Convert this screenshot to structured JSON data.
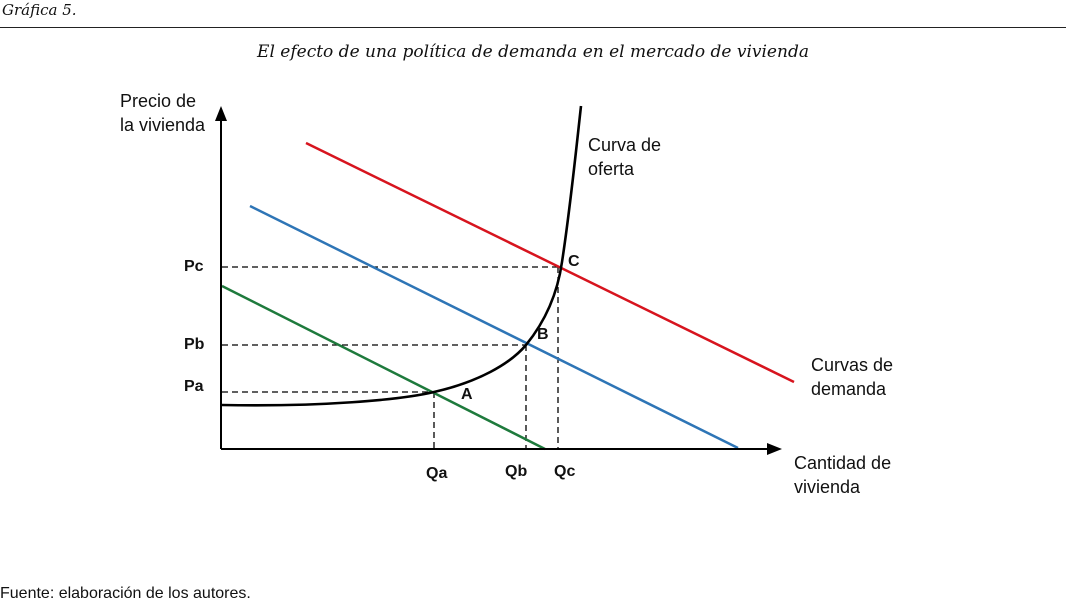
{
  "header": {
    "figure_label": "Gráfica 5.",
    "title": "El efecto de una política de demanda en el mercado de vivienda"
  },
  "diagram": {
    "y_axis_title": [
      "Precio de",
      "la vivienda"
    ],
    "x_axis_title": [
      "Cantidad de",
      "vivienda"
    ],
    "supply_label": [
      "Curva de",
      "oferta"
    ],
    "demand_label": [
      "Curvas de",
      "demanda"
    ],
    "price_ticks": {
      "pc": "Pc",
      "pb": "Pb",
      "pa": "Pa"
    },
    "quantity_ticks": {
      "qa": "Qa",
      "qb": "Qb",
      "qc": "Qc"
    },
    "equilibria": {
      "a": "A",
      "b": "B",
      "c": "C"
    },
    "colors": {
      "demand_high": "#d7141e",
      "demand_mid": "#2e75b6",
      "demand_low": "#1e7a3c",
      "supply": "#000000"
    }
  },
  "footer": {
    "source": "Fuente: elaboración de los autores."
  }
}
